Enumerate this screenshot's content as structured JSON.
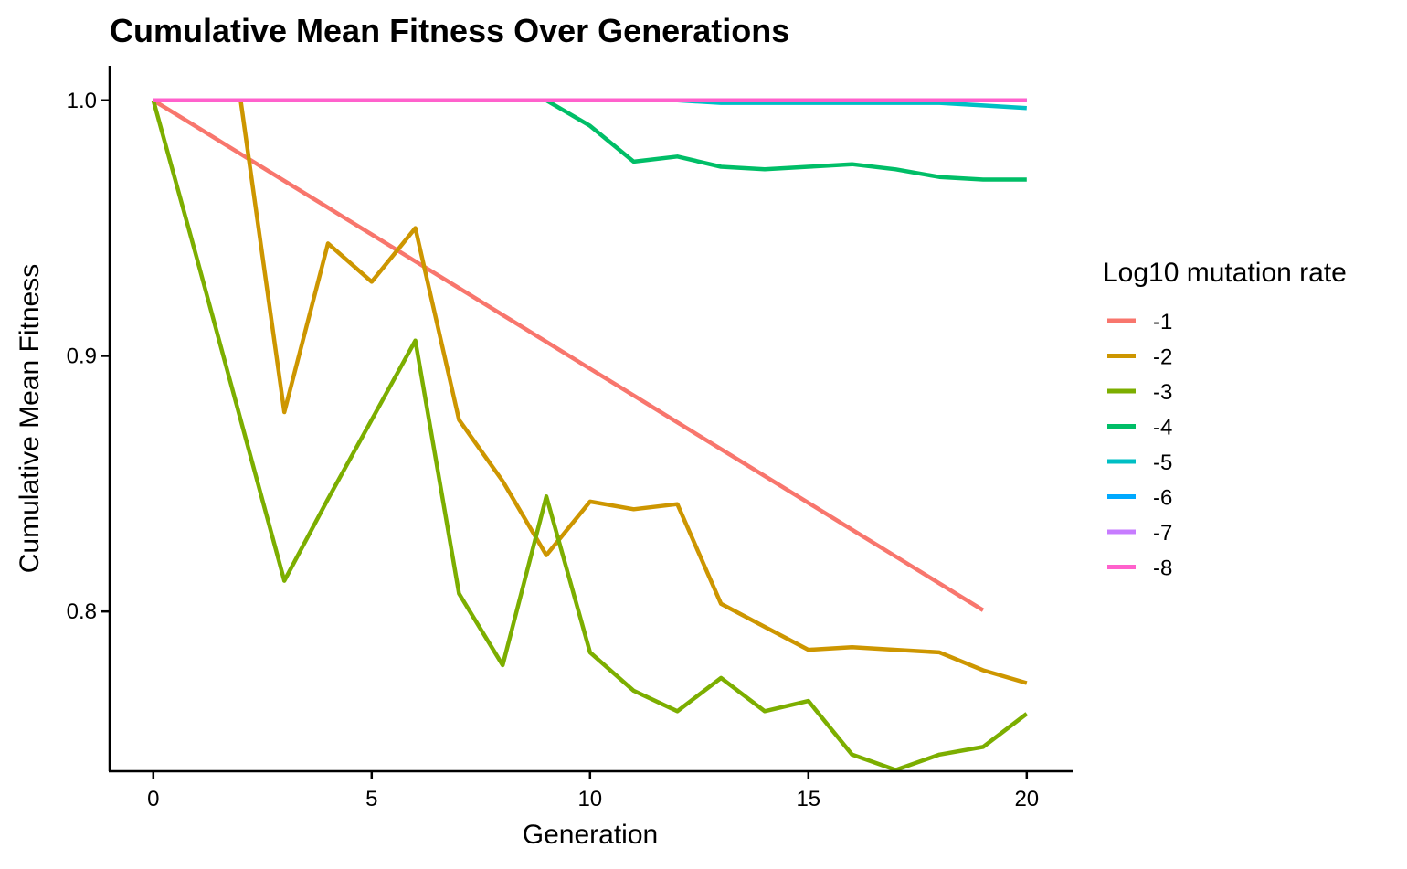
{
  "chart_data": {
    "type": "line",
    "title": "Cumulative Mean Fitness Over Generations",
    "xlabel": "Generation",
    "ylabel": "Cumulative Mean Fitness",
    "xlim": [
      -1,
      21.05
    ],
    "ylim": [
      0.7375,
      1.0135
    ],
    "xticks": [
      0,
      5,
      10,
      15,
      20
    ],
    "xtick_labels": [
      "0",
      "5",
      "10",
      "15",
      "20"
    ],
    "yticks": [
      0.8,
      0.9,
      1.0
    ],
    "ytick_labels": [
      "0.8",
      "0.9",
      "1.0"
    ],
    "grid": false,
    "legend": {
      "title": "Log10 mutation rate",
      "placement": "right"
    },
    "x": [
      0,
      1,
      2,
      3,
      4,
      5,
      6,
      7,
      8,
      9,
      10,
      11,
      12,
      13,
      14,
      15,
      16,
      17,
      18,
      19,
      20
    ],
    "series": [
      {
        "name": "-1",
        "color": "#F8766D",
        "values": [
          1.0,
          0.9895,
          0.979,
          0.9685,
          0.958,
          0.9475,
          0.937,
          0.9265,
          0.916,
          0.9055,
          0.895,
          0.8845,
          0.874,
          0.8635,
          0.853,
          0.8425,
          0.832,
          0.8215,
          0.811,
          0.8005,
          null
        ]
      },
      {
        "name": "-2",
        "color": "#CD9600",
        "values": [
          1.0,
          1.0,
          1.0,
          0.878,
          0.944,
          0.929,
          0.95,
          0.875,
          0.851,
          0.822,
          0.843,
          0.84,
          0.842,
          0.803,
          0.794,
          0.785,
          0.786,
          0.785,
          0.784,
          0.777,
          0.772
        ]
      },
      {
        "name": "-3",
        "color": "#7CAE00",
        "values": [
          1.0,
          0.938,
          0.875,
          0.812,
          0.844,
          0.875,
          0.906,
          0.807,
          0.779,
          0.845,
          0.784,
          0.769,
          0.761,
          0.774,
          0.761,
          0.765,
          0.744,
          0.738,
          0.744,
          0.747,
          0.76
        ]
      },
      {
        "name": "-4",
        "color": "#00BE67",
        "values": [
          1.0,
          1.0,
          1.0,
          1.0,
          1.0,
          1.0,
          1.0,
          1.0,
          1.0,
          1.0,
          0.99,
          0.976,
          0.978,
          0.974,
          0.973,
          0.974,
          0.975,
          0.973,
          0.97,
          0.969,
          0.969
        ]
      },
      {
        "name": "-5",
        "color": "#00BFC4",
        "values": [
          1.0,
          1.0,
          1.0,
          1.0,
          1.0,
          1.0,
          1.0,
          1.0,
          1.0,
          1.0,
          1.0,
          1.0,
          1.0,
          0.999,
          0.999,
          0.999,
          0.999,
          0.999,
          0.999,
          0.998,
          0.997
        ]
      },
      {
        "name": "-6",
        "color": "#00A9FF",
        "values": [
          1.0,
          1.0,
          1.0,
          1.0,
          1.0,
          1.0,
          1.0,
          1.0,
          1.0,
          1.0,
          1.0,
          1.0,
          1.0,
          1.0,
          1.0,
          1.0,
          1.0,
          1.0,
          1.0,
          1.0,
          1.0
        ]
      },
      {
        "name": "-7",
        "color": "#C77CFF",
        "values": [
          1.0,
          1.0,
          1.0,
          1.0,
          1.0,
          1.0,
          1.0,
          1.0,
          1.0,
          1.0,
          1.0,
          1.0,
          1.0,
          1.0,
          1.0,
          1.0,
          1.0,
          1.0,
          1.0,
          1.0,
          1.0
        ]
      },
      {
        "name": "-8",
        "color": "#FF61CC",
        "values": [
          1.0,
          1.0,
          1.0,
          1.0,
          1.0,
          1.0,
          1.0,
          1.0,
          1.0,
          1.0,
          1.0,
          1.0,
          1.0,
          1.0,
          1.0,
          1.0,
          1.0,
          1.0,
          1.0,
          1.0,
          1.0
        ]
      }
    ]
  }
}
